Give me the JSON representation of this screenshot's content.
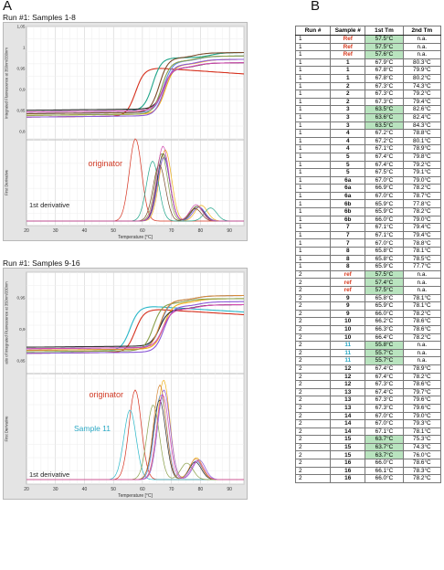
{
  "labels": {
    "panel_a": "A",
    "panel_b": "B"
  },
  "chart_data": [
    {
      "type": "line",
      "title": "Run #1: Samples 1-8",
      "xlabel": "Temperature [°C]",
      "ylabel_top": "Integrated Fluorescence at 350nm/330nm",
      "ylabel_bottom": "First Derivative",
      "xlim": [
        20,
        95
      ],
      "xticks": [
        "20",
        "30",
        "40",
        "50",
        "60",
        "70",
        "80",
        "90"
      ],
      "ylim_top": [
        0.78,
        1.05
      ],
      "yticks_top": [
        "0,8",
        "0,85",
        "0,9",
        "0,95",
        "1",
        "1,05"
      ],
      "annotations": [
        "originator",
        "1st derivative"
      ],
      "series": [
        {
          "color": "#d6301d",
          "tm": 57.6,
          "tm2": null,
          "peak": 1.1
        },
        {
          "color": "#f0b21a",
          "tm": 67.9,
          "tm2": 80.3,
          "peak": 0.95
        },
        {
          "color": "#5e8de0",
          "tm": 67.3,
          "tm2": 79.5,
          "peak": 0.85
        },
        {
          "color": "#21a58a",
          "tm": 63.5,
          "tm2": 83.5,
          "peak": 0.8
        },
        {
          "color": "#2a2a2a",
          "tm": 67.2,
          "tm2": 79.0,
          "peak": 0.9
        },
        {
          "color": "#8c5ad8",
          "tm": 67.4,
          "tm2": 79.4,
          "peak": 0.85
        },
        {
          "color": "#8aa04a",
          "tm": 66.6,
          "tm2": 78.7,
          "peak": 0.9
        },
        {
          "color": "#7a4a2a",
          "tm": 65.8,
          "tm2": 78.2,
          "peak": 0.75
        },
        {
          "color": "#d24ab0",
          "tm": 67.1,
          "tm2": 78.5,
          "peak": 1.0
        }
      ]
    },
    {
      "type": "line",
      "title": "Run #1: Samples 9-16",
      "xlabel": "Temperature [°C]",
      "ylabel_top": "atio of Integrated Fluorescence at 350nm/330nm",
      "ylabel_bottom": "First Derivative",
      "xlim": [
        20,
        95
      ],
      "xticks": [
        "20",
        "30",
        "40",
        "50",
        "60",
        "70",
        "80",
        "90"
      ],
      "ylim_top": [
        0.83,
        0.99
      ],
      "yticks_top": [
        "0,85",
        "0,9",
        "0,95"
      ],
      "annotations": [
        "originator",
        "Sample 11",
        "1st derivative"
      ],
      "series": [
        {
          "color": "#d6301d",
          "tm": 57.5,
          "tm2": null,
          "peak": 0.9
        },
        {
          "color": "#2ab7c9",
          "tm": 55.7,
          "tm2": null,
          "peak": 0.7
        },
        {
          "color": "#f0b21a",
          "tm": 67.3,
          "tm2": 78.6,
          "peak": 1.0
        },
        {
          "color": "#5e8de0",
          "tm": 66.3,
          "tm2": 78.5,
          "peak": 0.85
        },
        {
          "color": "#2a2a2a",
          "tm": 65.9,
          "tm2": 78.2,
          "peak": 0.8
        },
        {
          "color": "#8c5ad8",
          "tm": 67.4,
          "tm2": 79.5,
          "peak": 0.9
        },
        {
          "color": "#8aa04a",
          "tm": 63.7,
          "tm2": 75.3,
          "peak": 0.75
        },
        {
          "color": "#d68a3a",
          "tm": 66.0,
          "tm2": 78.4,
          "peak": 0.95
        },
        {
          "color": "#d24ab0",
          "tm": 67.0,
          "tm2": 79.0,
          "peak": 0.85
        }
      ]
    },
    {
      "type": "table",
      "columns": [
        "Run #",
        "Sample #",
        "1st Tm",
        "2nd Tm"
      ],
      "rows": [
        [
          "1",
          "Ref",
          "57.5°C",
          "n.a.",
          "red",
          true
        ],
        [
          "1",
          "Ref",
          "57.5°C",
          "n.a.",
          "red",
          true
        ],
        [
          "1",
          "Ref",
          "57.6°C",
          "n.a.",
          "red",
          true
        ],
        [
          "1",
          "1",
          "67.9°C",
          "80.3°C",
          "",
          false
        ],
        [
          "1",
          "1",
          "67.8°C",
          "79.9°C",
          "",
          false
        ],
        [
          "1",
          "1",
          "67.8°C",
          "80.2°C",
          "",
          false
        ],
        [
          "1",
          "2",
          "67.3°C",
          "74.3°C",
          "",
          false
        ],
        [
          "1",
          "2",
          "67.3°C",
          "79.2°C",
          "",
          false
        ],
        [
          "1",
          "2",
          "67.3°C",
          "79.4°C",
          "",
          false
        ],
        [
          "1",
          "3",
          "63.5°C",
          "82.6°C",
          "",
          true
        ],
        [
          "1",
          "3",
          "63.6°C",
          "82.4°C",
          "",
          true
        ],
        [
          "1",
          "3",
          "63.5°C",
          "84.3°C",
          "",
          true
        ],
        [
          "1",
          "4",
          "67.2°C",
          "78.8°C",
          "",
          false
        ],
        [
          "1",
          "4",
          "67.2°C",
          "80.1°C",
          "",
          false
        ],
        [
          "1",
          "4",
          "67.1°C",
          "78.9°C",
          "",
          false
        ],
        [
          "1",
          "5",
          "67.4°C",
          "79.8°C",
          "",
          false
        ],
        [
          "1",
          "5",
          "67.4°C",
          "79.2°C",
          "",
          false
        ],
        [
          "1",
          "5",
          "67.5°C",
          "79.1°C",
          "",
          false
        ],
        [
          "1",
          "6a",
          "67.0°C",
          "79.0°C",
          "",
          false
        ],
        [
          "1",
          "6a",
          "66.9°C",
          "78.2°C",
          "",
          false
        ],
        [
          "1",
          "6a",
          "67.0°C",
          "78.7°C",
          "",
          false
        ],
        [
          "1",
          "6b",
          "65.9°C",
          "77.8°C",
          "",
          false
        ],
        [
          "1",
          "6b",
          "65.9°C",
          "78.2°C",
          "",
          false
        ],
        [
          "1",
          "6b",
          "66.0°C",
          "79.0°C",
          "",
          false
        ],
        [
          "1",
          "7",
          "67.1°C",
          "79.4°C",
          "",
          false
        ],
        [
          "1",
          "7",
          "67.1°C",
          "79.4°C",
          "",
          false
        ],
        [
          "1",
          "7",
          "67.0°C",
          "78.8°C",
          "",
          false
        ],
        [
          "1",
          "8",
          "65.8°C",
          "78.1°C",
          "",
          false
        ],
        [
          "1",
          "8",
          "65.8°C",
          "78.5°C",
          "",
          false
        ],
        [
          "1",
          "8",
          "65.9°C",
          "77.7°C",
          "",
          false
        ],
        [
          "2",
          "ref",
          "57.5°C",
          "n.a.",
          "red",
          true
        ],
        [
          "2",
          "ref",
          "57.4°C",
          "n.a.",
          "red",
          true
        ],
        [
          "2",
          "ref",
          "57.5°C",
          "n.a.",
          "red",
          true
        ],
        [
          "2",
          "9",
          "65.8°C",
          "78.1°C",
          "",
          false
        ],
        [
          "2",
          "9",
          "65.9°C",
          "78.1°C",
          "",
          false
        ],
        [
          "2",
          "9",
          "66.0°C",
          "78.2°C",
          "",
          false
        ],
        [
          "2",
          "10",
          "66.2°C",
          "78.6°C",
          "",
          false
        ],
        [
          "2",
          "10",
          "66.3°C",
          "78.6°C",
          "",
          false
        ],
        [
          "2",
          "10",
          "66.4°C",
          "78.2°C",
          "",
          false
        ],
        [
          "2",
          "11",
          "55.8°C",
          "n.a.",
          "blue",
          true
        ],
        [
          "2",
          "11",
          "55.7°C",
          "n.a.",
          "blue",
          true
        ],
        [
          "2",
          "11",
          "55.7°C",
          "n.a.",
          "blue",
          true
        ],
        [
          "2",
          "12",
          "67.4°C",
          "78.9°C",
          "",
          false
        ],
        [
          "2",
          "12",
          "67.4°C",
          "78.2°C",
          "",
          false
        ],
        [
          "2",
          "12",
          "67.3°C",
          "78.6°C",
          "",
          false
        ],
        [
          "2",
          "13",
          "67.4°C",
          "79.7°C",
          "",
          false
        ],
        [
          "2",
          "13",
          "67.3°C",
          "79.6°C",
          "",
          false
        ],
        [
          "2",
          "13",
          "67.3°C",
          "79.6°C",
          "",
          false
        ],
        [
          "2",
          "14",
          "67.0°C",
          "79.0°C",
          "",
          false
        ],
        [
          "2",
          "14",
          "67.0°C",
          "79.3°C",
          "",
          false
        ],
        [
          "2",
          "14",
          "67.1°C",
          "78.1°C",
          "",
          false
        ],
        [
          "2",
          "15",
          "63.7°C",
          "75.3°C",
          "",
          true
        ],
        [
          "2",
          "15",
          "63.7°C",
          "74.3°C",
          "",
          true
        ],
        [
          "2",
          "15",
          "63.7°C",
          "76.0°C",
          "",
          true
        ],
        [
          "2",
          "16",
          "66.0°C",
          "78.6°C",
          "",
          false
        ],
        [
          "2",
          "16",
          "66.1°C",
          "78.3°C",
          "",
          false
        ],
        [
          "2",
          "16",
          "66.0°C",
          "78.2°C",
          "",
          false
        ]
      ]
    }
  ]
}
